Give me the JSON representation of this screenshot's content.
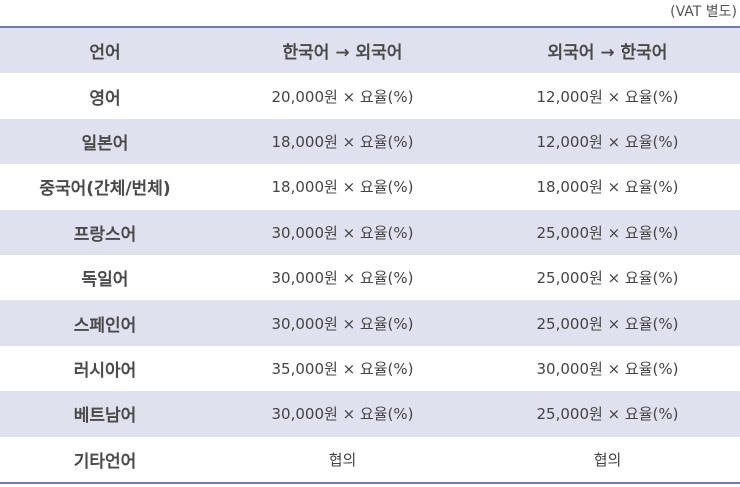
{
  "vat_note": "(VAT 별도)",
  "headers": [
    "언어",
    "한국어 → 외국어",
    "외국어 → 한국어"
  ],
  "rows": [
    {
      "language": "영어",
      "ko_to_foreign": "20,000원 × 요율(%)",
      "foreign_to_ko": "12,000원 × 요율(%)"
    },
    {
      "language": "일본어",
      "ko_to_foreign": "18,000원 × 요율(%)",
      "foreign_to_ko": "12,000원 × 요율(%)"
    },
    {
      "language": "중국어(간체/번체)",
      "ko_to_foreign": "18,000원 × 요율(%)",
      "foreign_to_ko": "18,000원 × 요율(%)"
    },
    {
      "language": "프랑스어",
      "ko_to_foreign": "30,000원 × 요율(%)",
      "foreign_to_ko": "25,000원 × 요율(%)"
    },
    {
      "language": "독일어",
      "ko_to_foreign": "30,000원 × 요율(%)",
      "foreign_to_ko": "25,000원 × 요율(%)"
    },
    {
      "language": "스페인어",
      "ko_to_foreign": "30,000원 × 요율(%)",
      "foreign_to_ko": "25,000원 × 요율(%)"
    },
    {
      "language": "러시아어",
      "ko_to_foreign": "35,000원 × 요율(%)",
      "foreign_to_ko": "30,000원 × 요율(%)"
    },
    {
      "language": "베트남어",
      "ko_to_foreign": "30,000원 × 요율(%)",
      "foreign_to_ko": "25,000원 × 요율(%)"
    },
    {
      "language": "기타언어",
      "ko_to_foreign": "협의",
      "foreign_to_ko": "협의"
    }
  ],
  "colors": {
    "shade": "#dfe1ee",
    "border": "#6d7bb4"
  }
}
